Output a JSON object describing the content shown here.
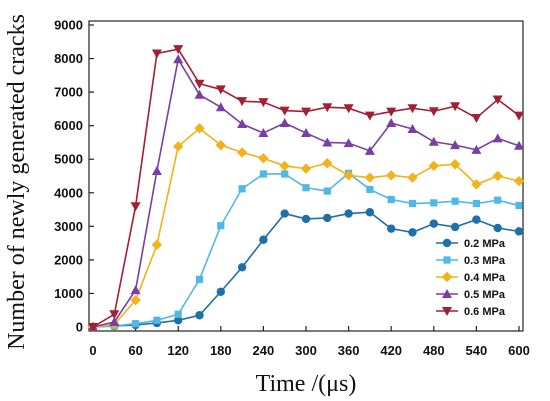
{
  "chart_data": {
    "type": "line",
    "xlabel": "Time /(μs)",
    "ylabel": "Number of newly generated cracks",
    "xlim": [
      0,
      600
    ],
    "ylim": [
      0,
      9000
    ],
    "xticks": [
      0,
      60,
      120,
      180,
      240,
      300,
      360,
      420,
      480,
      540,
      600
    ],
    "yticks": [
      0,
      1000,
      2000,
      3000,
      4000,
      5000,
      6000,
      7000,
      8000,
      9000
    ],
    "grid": false,
    "legend_position": "bottom-right",
    "x": [
      0,
      30,
      60,
      90,
      120,
      150,
      180,
      210,
      240,
      270,
      300,
      330,
      360,
      390,
      420,
      450,
      480,
      510,
      540,
      570,
      600
    ],
    "series": [
      {
        "name": "0.2 MPa",
        "color": "#1f6fa8",
        "marker": "circle",
        "values": [
          0,
          30,
          60,
          120,
          200,
          350,
          1050,
          1780,
          2600,
          3380,
          3220,
          3250,
          3380,
          3420,
          2930,
          2820,
          3080,
          2980,
          3200,
          2950,
          2850
        ]
      },
      {
        "name": "0.3 MPa",
        "color": "#4fb8e6",
        "marker": "square",
        "values": [
          0,
          30,
          100,
          200,
          380,
          1420,
          3020,
          4120,
          4560,
          4560,
          4150,
          4050,
          4580,
          4100,
          3800,
          3680,
          3700,
          3750,
          3680,
          3780,
          3620
        ]
      },
      {
        "name": "0.4 MPa",
        "color": "#f2b21a",
        "marker": "diamond",
        "values": [
          0,
          80,
          800,
          2450,
          5380,
          5920,
          5420,
          5200,
          5030,
          4800,
          4720,
          4880,
          4520,
          4450,
          4520,
          4450,
          4800,
          4850,
          4250,
          4500,
          4350
        ]
      },
      {
        "name": "0.5 MPa",
        "color": "#7a3fa3",
        "marker": "triangle-up",
        "values": [
          0,
          150,
          1100,
          4650,
          7980,
          6920,
          6550,
          6050,
          5780,
          6080,
          5780,
          5500,
          5480,
          5250,
          6080,
          5900,
          5520,
          5420,
          5280,
          5620,
          5400
        ]
      },
      {
        "name": "0.6 MPa",
        "color": "#a31f34",
        "marker": "triangle-down",
        "values": [
          0,
          380,
          3600,
          8150,
          8280,
          7250,
          7080,
          6730,
          6700,
          6450,
          6420,
          6550,
          6520,
          6300,
          6420,
          6520,
          6430,
          6580,
          6230,
          6780,
          6300
        ]
      }
    ]
  }
}
